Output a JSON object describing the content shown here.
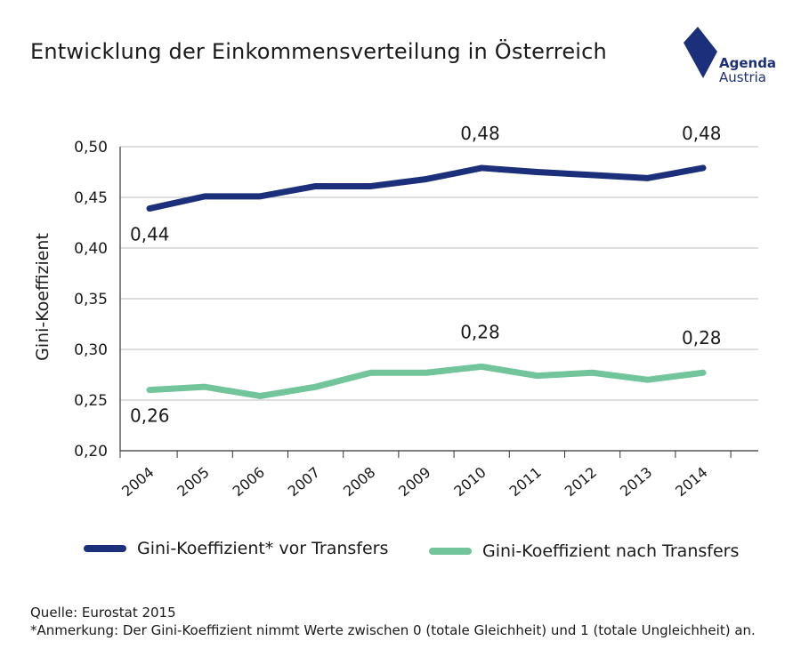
{
  "header": {
    "title": "Entwicklung der Einkommensverteilung in Österreich",
    "logo_line1": "Agenda",
    "logo_line2": "Austria",
    "logo_color": "#1c2f7a"
  },
  "chart_data": {
    "type": "line",
    "title": "Entwicklung der Einkommensverteilung in Österreich",
    "xlabel": "",
    "ylabel": "Gini-Koeffizient",
    "x": [
      "2004",
      "2005",
      "2006",
      "2007",
      "2008",
      "2009",
      "2010",
      "2011",
      "2012",
      "2013",
      "2014"
    ],
    "ylim": [
      0.2,
      0.5
    ],
    "yticks": [
      "0,20",
      "0,25",
      "0,30",
      "0,35",
      "0,40",
      "0,45",
      "0,50"
    ],
    "ytick_values": [
      0.2,
      0.25,
      0.3,
      0.35,
      0.4,
      0.45,
      0.5
    ],
    "grid": true,
    "legend_position": "bottom",
    "series": [
      {
        "name": "Gini-Koeffizient* vor Transfers",
        "color": "#1c2f7a",
        "values": [
          0.439,
          0.451,
          0.451,
          0.461,
          0.461,
          0.468,
          0.479,
          0.475,
          0.472,
          0.469,
          0.479
        ],
        "labels": [
          {
            "index": 0,
            "text": "0,44",
            "pos": "below"
          },
          {
            "index": 6,
            "text": "0,48",
            "pos": "above"
          },
          {
            "index": 10,
            "text": "0,48",
            "pos": "above"
          }
        ]
      },
      {
        "name": "Gini-Koeffizient nach Transfers",
        "color": "#72c49a",
        "values": [
          0.26,
          0.263,
          0.254,
          0.263,
          0.277,
          0.277,
          0.283,
          0.274,
          0.277,
          0.27,
          0.277
        ],
        "labels": [
          {
            "index": 0,
            "text": "0,26",
            "pos": "below"
          },
          {
            "index": 6,
            "text": "0,28",
            "pos": "above"
          },
          {
            "index": 10,
            "text": "0,28",
            "pos": "above"
          }
        ]
      }
    ]
  },
  "legend": {
    "item1": "Gini-Koeffizient* vor Transfers",
    "item2": "Gini-Koeffizient nach Transfers"
  },
  "footer": {
    "source": "Quelle: Eurostat 2015",
    "note": "*Anmerkung: Der Gini-Koeffizient nimmt Werte zwischen 0 (totale Gleichheit) und 1 (totale Ungleichheit) an."
  }
}
